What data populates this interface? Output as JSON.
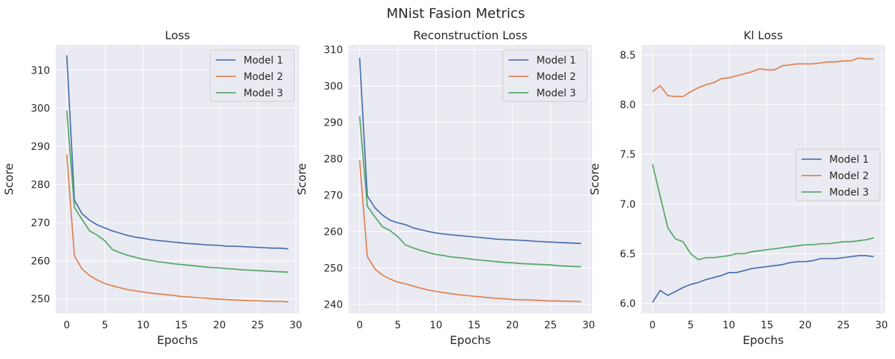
{
  "figure": {
    "title": "MNist Fasion Metrics"
  },
  "style": {
    "panel_bg": "#eaeaf2",
    "grid_color": "#ffffff",
    "series_colors": [
      "#4c72b0",
      "#dd8452",
      "#55a868"
    ]
  },
  "chart_data": [
    {
      "type": "line",
      "title": "Loss",
      "xlabel": "Epochs",
      "ylabel": "Score",
      "xlim": [
        -1.45,
        30.45
      ],
      "ylim": [
        246.2,
        316.6
      ],
      "xticks": [
        0,
        5,
        10,
        15,
        20,
        25,
        30
      ],
      "yticks": [
        250,
        260,
        270,
        280,
        290,
        300,
        310
      ],
      "grid": true,
      "legend": "top-right",
      "x": [
        0,
        1,
        2,
        3,
        4,
        5,
        6,
        7,
        8,
        9,
        10,
        11,
        12,
        13,
        14,
        15,
        16,
        17,
        18,
        19,
        20,
        21,
        22,
        23,
        24,
        25,
        26,
        27,
        28,
        29
      ],
      "series": [
        {
          "name": "Model 1",
          "values": [
            313.9,
            275.9,
            272.3,
            270.6,
            269.4,
            268.6,
            267.8,
            267.2,
            266.6,
            266.2,
            265.9,
            265.5,
            265.3,
            265.1,
            264.9,
            264.7,
            264.5,
            264.4,
            264.2,
            264.1,
            264.0,
            263.8,
            263.8,
            263.7,
            263.6,
            263.5,
            263.4,
            263.3,
            263.3,
            263.1
          ]
        },
        {
          "name": "Model 2",
          "values": [
            287.9,
            261.3,
            257.8,
            256.1,
            254.9,
            254.0,
            253.4,
            252.9,
            252.4,
            252.1,
            251.8,
            251.5,
            251.3,
            251.1,
            250.9,
            250.6,
            250.5,
            250.3,
            250.2,
            250.0,
            249.9,
            249.8,
            249.7,
            249.6,
            249.5,
            249.5,
            249.4,
            249.3,
            249.3,
            249.2
          ]
        },
        {
          "name": "Model 3",
          "values": [
            299.4,
            274.0,
            270.8,
            267.8,
            266.7,
            265.2,
            262.9,
            262.1,
            261.4,
            260.9,
            260.4,
            260.1,
            259.7,
            259.5,
            259.2,
            259.0,
            258.8,
            258.6,
            258.4,
            258.2,
            258.1,
            257.9,
            257.8,
            257.6,
            257.5,
            257.4,
            257.3,
            257.2,
            257.1,
            257.0
          ]
        }
      ]
    },
    {
      "type": "line",
      "title": "Reconstruction Loss",
      "xlabel": "Epochs",
      "ylabel": "Score",
      "xlim": [
        -1.45,
        30.45
      ],
      "ylim": [
        237.5,
        311.3
      ],
      "xticks": [
        0,
        5,
        10,
        15,
        20,
        25,
        30
      ],
      "yticks": [
        240,
        250,
        260,
        270,
        280,
        290,
        300,
        310
      ],
      "grid": true,
      "legend": "top-right",
      "x": [
        0,
        1,
        2,
        3,
        4,
        5,
        6,
        7,
        8,
        9,
        10,
        11,
        12,
        13,
        14,
        15,
        16,
        17,
        18,
        19,
        20,
        21,
        22,
        23,
        24,
        25,
        26,
        27,
        28,
        29
      ],
      "series": [
        {
          "name": "Model 1",
          "values": [
            307.8,
            269.8,
            266.5,
            264.5,
            263.1,
            262.4,
            261.9,
            261.0,
            260.5,
            260.0,
            259.6,
            259.3,
            259.1,
            258.9,
            258.7,
            258.5,
            258.3,
            258.1,
            257.9,
            257.8,
            257.7,
            257.6,
            257.5,
            257.3,
            257.2,
            257.1,
            257.0,
            256.9,
            256.8,
            256.7
          ]
        },
        {
          "name": "Model 2",
          "values": [
            279.6,
            253.1,
            249.7,
            248.0,
            246.9,
            246.1,
            245.6,
            245.0,
            244.4,
            243.9,
            243.5,
            243.2,
            242.9,
            242.6,
            242.4,
            242.2,
            242.0,
            241.8,
            241.6,
            241.5,
            241.3,
            241.2,
            241.2,
            241.1,
            241.0,
            240.9,
            240.9,
            240.8,
            240.8,
            240.7
          ]
        },
        {
          "name": "Model 3",
          "values": [
            291.7,
            267.0,
            264.0,
            261.3,
            260.2,
            258.6,
            256.3,
            255.5,
            254.8,
            254.2,
            253.7,
            253.4,
            253.0,
            252.8,
            252.6,
            252.3,
            252.1,
            251.9,
            251.7,
            251.5,
            251.4,
            251.2,
            251.1,
            251.0,
            250.9,
            250.8,
            250.6,
            250.5,
            250.4,
            250.3
          ]
        }
      ]
    },
    {
      "type": "line",
      "title": "Kl Loss",
      "xlabel": "Epochs",
      "ylabel": "Score",
      "xlim": [
        -1.45,
        30.45
      ],
      "ylim": [
        5.9,
        8.6
      ],
      "xticks": [
        0,
        5,
        10,
        15,
        20,
        25,
        30
      ],
      "yticks": [
        6.0,
        6.5,
        7.0,
        7.5,
        8.0,
        8.5
      ],
      "grid": true,
      "legend": "center-right",
      "x": [
        0,
        1,
        2,
        3,
        4,
        5,
        6,
        7,
        8,
        9,
        10,
        11,
        12,
        13,
        14,
        15,
        16,
        17,
        18,
        19,
        20,
        21,
        22,
        23,
        24,
        25,
        26,
        27,
        28,
        29
      ],
      "series": [
        {
          "name": "Model 1",
          "values": [
            6.01,
            6.13,
            6.08,
            6.12,
            6.16,
            6.19,
            6.21,
            6.24,
            6.26,
            6.28,
            6.31,
            6.31,
            6.33,
            6.35,
            6.36,
            6.37,
            6.38,
            6.39,
            6.41,
            6.42,
            6.42,
            6.43,
            6.45,
            6.45,
            6.45,
            6.46,
            6.47,
            6.48,
            6.48,
            6.47
          ]
        },
        {
          "name": "Model 2",
          "values": [
            8.13,
            8.19,
            8.09,
            8.08,
            8.08,
            8.13,
            8.17,
            8.2,
            8.22,
            8.26,
            8.27,
            8.29,
            8.31,
            8.33,
            8.36,
            8.35,
            8.35,
            8.39,
            8.4,
            8.41,
            8.41,
            8.41,
            8.42,
            8.43,
            8.43,
            8.44,
            8.44,
            8.47,
            8.46,
            8.46
          ]
        },
        {
          "name": "Model 3",
          "values": [
            7.4,
            7.08,
            6.76,
            6.65,
            6.62,
            6.5,
            6.44,
            6.46,
            6.46,
            6.47,
            6.48,
            6.5,
            6.5,
            6.52,
            6.53,
            6.54,
            6.55,
            6.56,
            6.57,
            6.58,
            6.59,
            6.59,
            6.6,
            6.6,
            6.61,
            6.62,
            6.62,
            6.63,
            6.64,
            6.66
          ]
        }
      ]
    }
  ]
}
